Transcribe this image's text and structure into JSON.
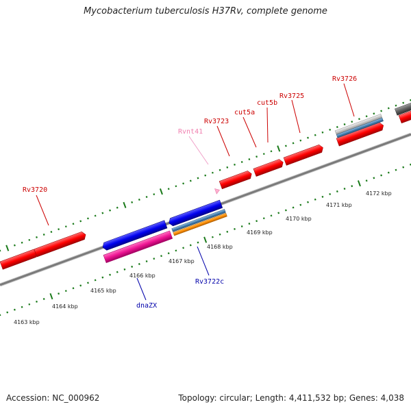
{
  "title": "Mycobacterium tuberculosis H37Rv, complete genome",
  "footer": {
    "accession": "Accession: NC_000962",
    "summary": "Topology: circular; Length: 4,411,532 bp; Genes: 4,038"
  },
  "colors": {
    "tick": "#1a7a1a",
    "backbone": "#808080",
    "forward_label": "#cc0000",
    "reverse_label": "#0000aa",
    "ncrna_label": "#f080b0"
  },
  "scale_labels": [
    {
      "text": "4163 kbp"
    },
    {
      "text": "4164 kbp"
    },
    {
      "text": "4165 kbp"
    },
    {
      "text": "4166 kbp"
    },
    {
      "text": "4167 kbp"
    },
    {
      "text": "4168 kbp"
    },
    {
      "text": "4169 kbp"
    },
    {
      "text": "4170 kbp"
    },
    {
      "text": "4171 kbp"
    },
    {
      "text": "4172 kbp"
    }
  ],
  "gene_labels": [
    {
      "text": "Rv3720",
      "type": "forward"
    },
    {
      "text": "Rvnt41",
      "type": "ncrna"
    },
    {
      "text": "Rv3723",
      "type": "forward"
    },
    {
      "text": "cut5a",
      "type": "forward"
    },
    {
      "text": "cut5b",
      "type": "forward"
    },
    {
      "text": "Rv3725",
      "type": "forward"
    },
    {
      "text": "Rv3726",
      "type": "forward"
    },
    {
      "text": "dnaZX",
      "type": "reverse"
    },
    {
      "text": "Rv3722c",
      "type": "reverse"
    }
  ]
}
